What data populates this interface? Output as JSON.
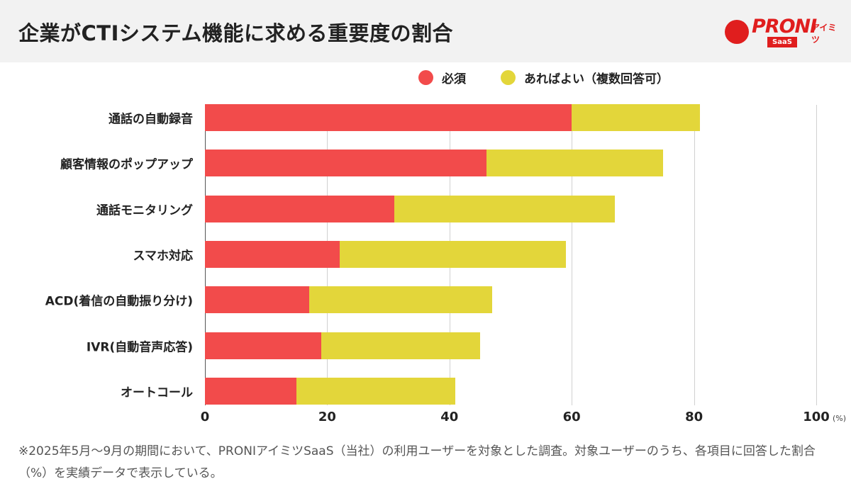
{
  "title": "企業がCTIシステム機能に求める重要度の割合",
  "logo": {
    "text": "PRONI",
    "kana": "アイミツ",
    "badge": "SaaS"
  },
  "note": "※2025年5月〜9月の期間において、PRONIアイミツSaaS（当社）の利用ユーザーを対象とした調査。対象ユーザーのうち、各項目に回答した割合（%）を実績データで表示している。",
  "chart_data": {
    "type": "bar",
    "orientation": "horizontal",
    "stacked": true,
    "categories": [
      "通話の自動録音",
      "顧客情報のポップアップ",
      "通話モニタリング",
      "スマホ対応",
      "ACD(着信の自動振り分け)",
      "IVR(自動音声応答)",
      "オートコール"
    ],
    "series": [
      {
        "name": "必須",
        "color": "#f24b4b",
        "values": [
          60,
          46,
          31,
          22,
          17,
          19,
          15
        ]
      },
      {
        "name": "あればよい（複数回答可）",
        "color": "#e3d63a",
        "values": [
          21,
          29,
          36,
          37,
          30,
          26,
          26
        ]
      }
    ],
    "xlim": [
      0,
      100
    ],
    "xticks": [
      "0",
      "20",
      "40",
      "60",
      "80",
      "100"
    ],
    "xunit": "(%)",
    "grid": true,
    "legend_position": "top-right"
  }
}
